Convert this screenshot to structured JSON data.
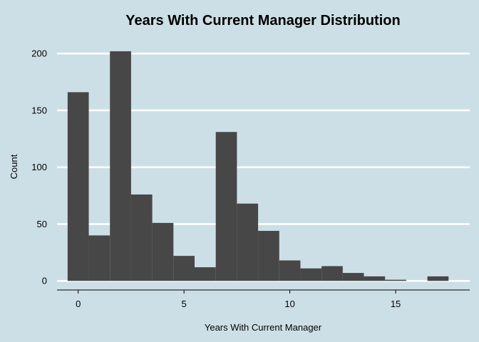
{
  "chart_data": {
    "type": "bar",
    "title": "Years With Current Manager Distribution",
    "xlabel": "Years With Current Manager",
    "ylabel": "Count",
    "bin_width": 1,
    "bins": [
      {
        "x": 0,
        "value": 166
      },
      {
        "x": 1,
        "value": 40
      },
      {
        "x": 2,
        "value": 202
      },
      {
        "x": 3,
        "value": 76
      },
      {
        "x": 4,
        "value": 51
      },
      {
        "x": 5,
        "value": 22
      },
      {
        "x": 6,
        "value": 12
      },
      {
        "x": 7,
        "value": 131
      },
      {
        "x": 8,
        "value": 68
      },
      {
        "x": 9,
        "value": 44
      },
      {
        "x": 10,
        "value": 18
      },
      {
        "x": 11,
        "value": 11
      },
      {
        "x": 12,
        "value": 13
      },
      {
        "x": 13,
        "value": 7
      },
      {
        "x": 14,
        "value": 4
      },
      {
        "x": 15,
        "value": 1
      },
      {
        "x": 16,
        "value": 0
      },
      {
        "x": 17,
        "value": 4
      }
    ],
    "xlim": [
      -1,
      18.5
    ],
    "ylim": [
      -8,
      212
    ],
    "x_ticks": [
      0,
      5,
      10,
      15
    ],
    "y_ticks": [
      0,
      50,
      100,
      150,
      200
    ],
    "grid": true
  }
}
